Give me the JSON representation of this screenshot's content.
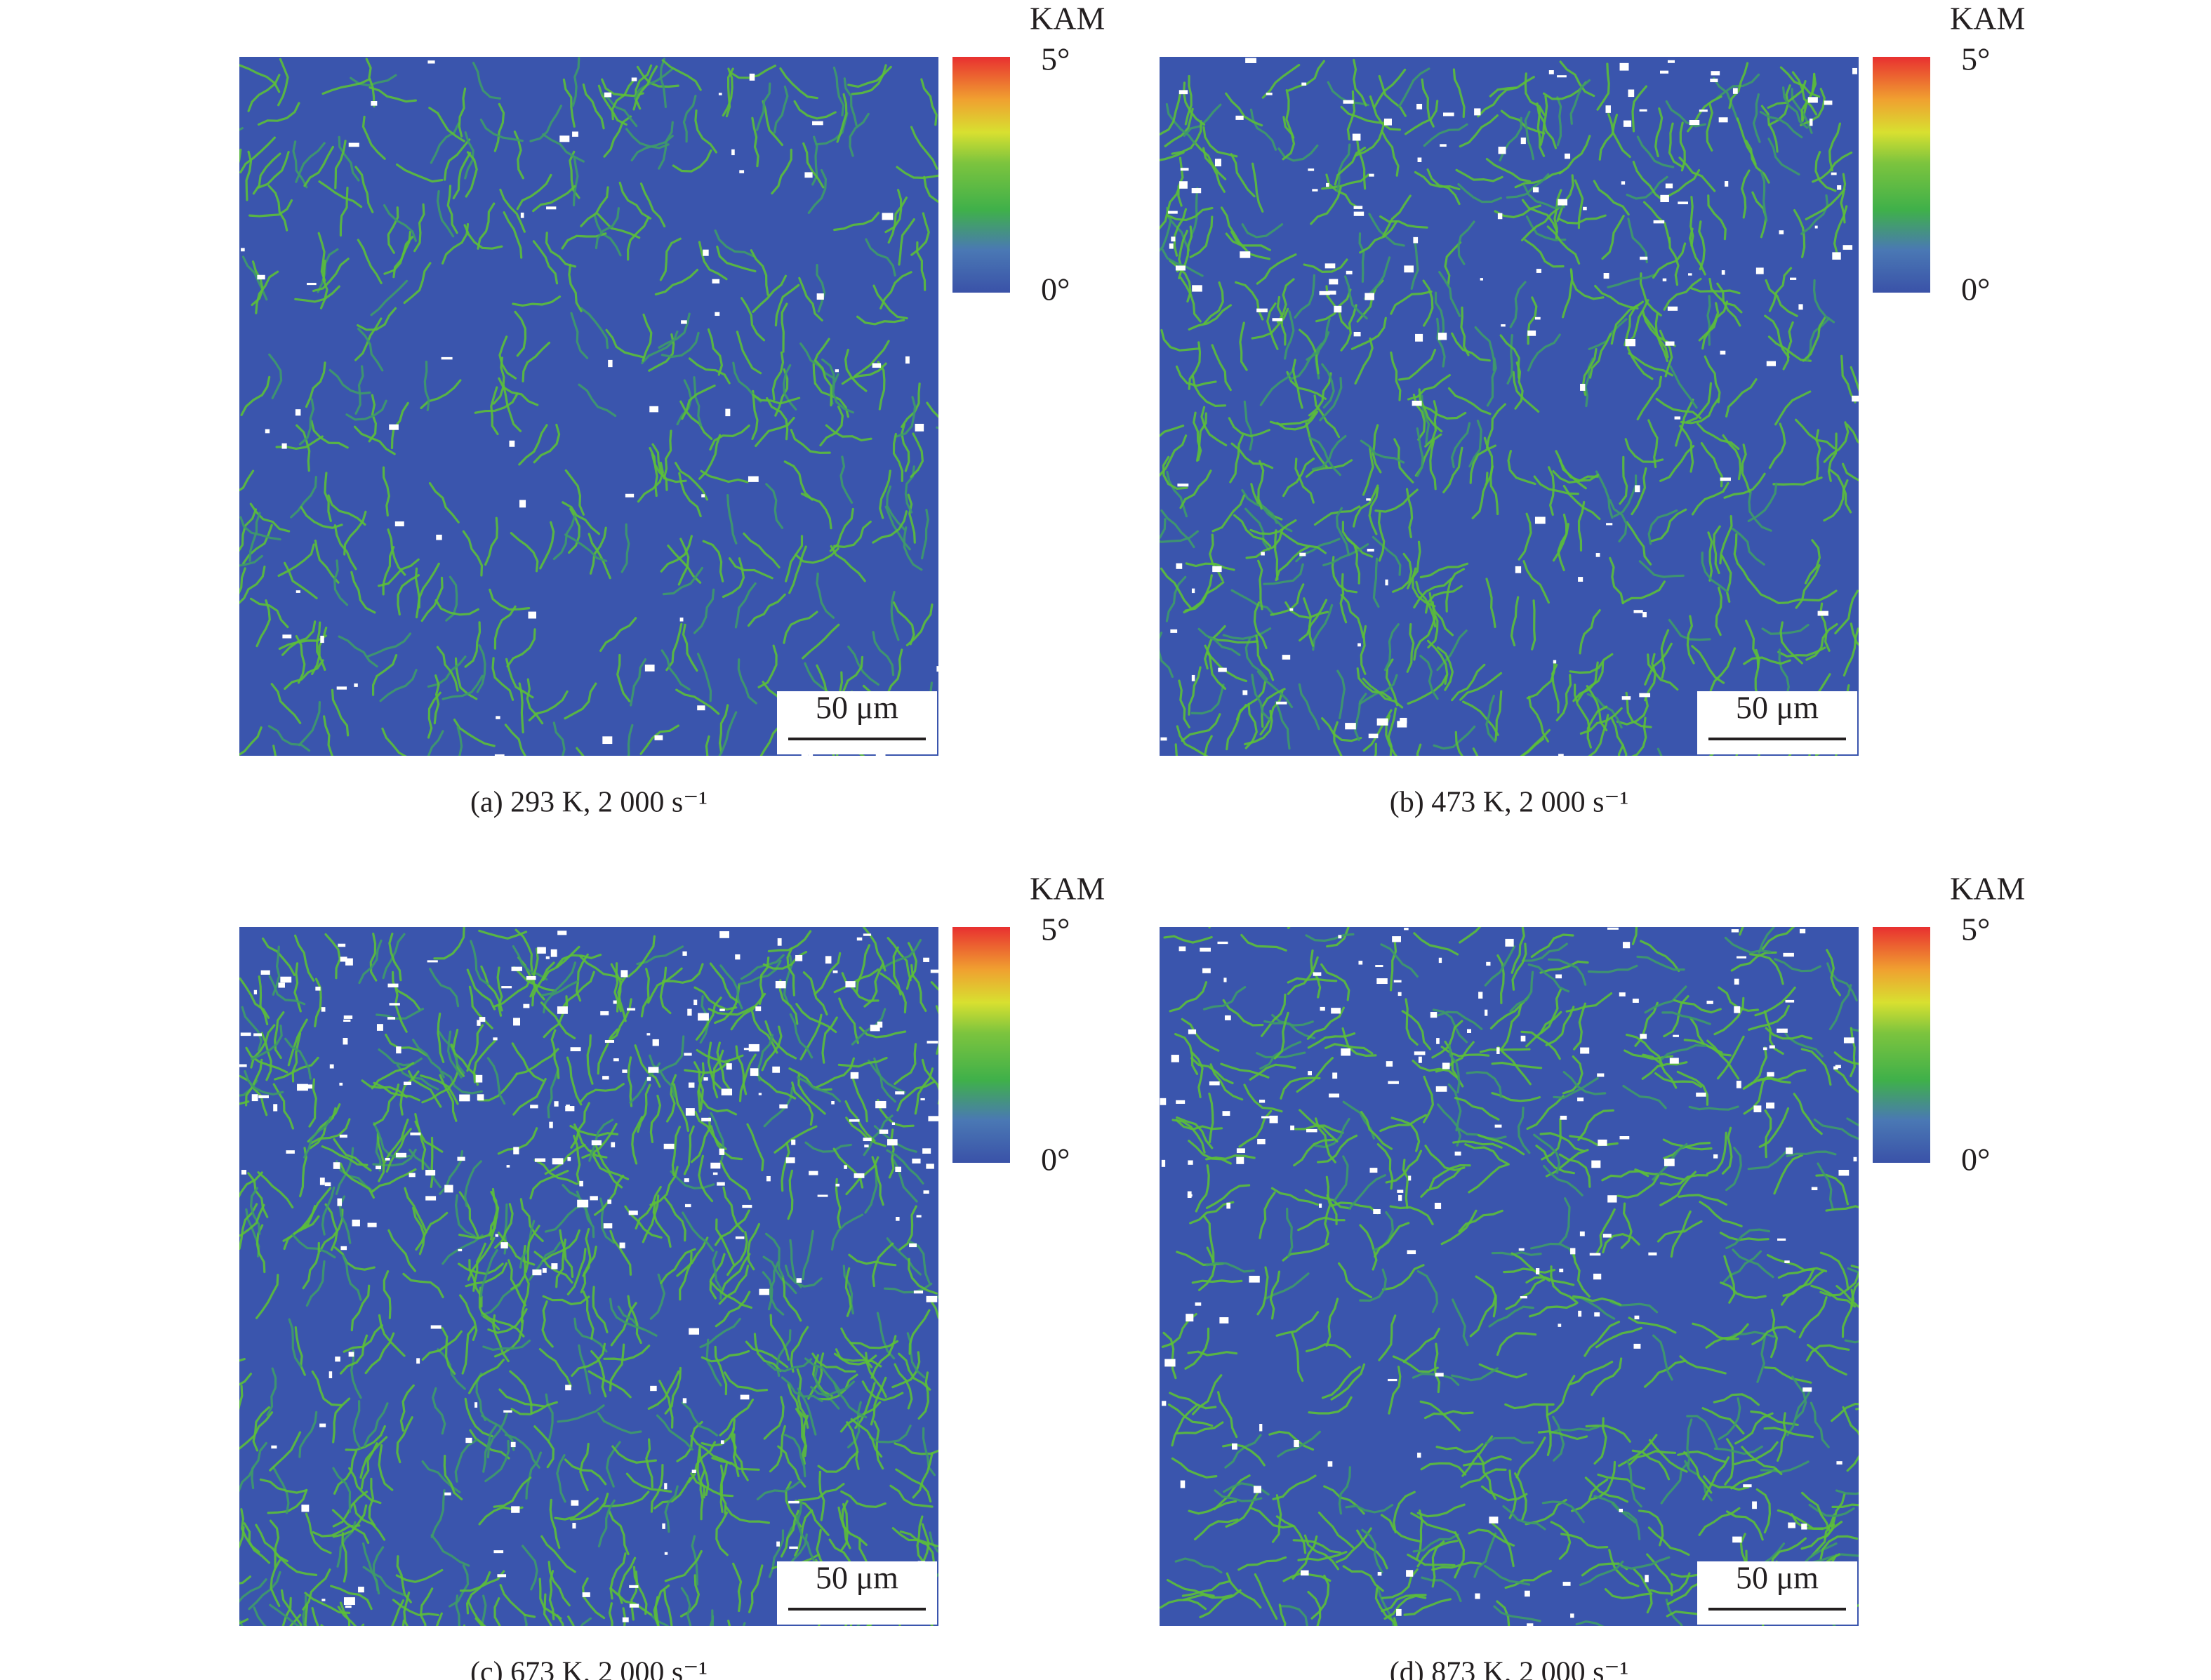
{
  "panels": [
    {
      "caption": "(a) 293 K, 2 000 s⁻¹",
      "colorbar_title": "KAM",
      "colorbar_max": "5°",
      "colorbar_min": "0°",
      "scale_bar": "50 μm"
    },
    {
      "caption": "(b) 473 K, 2 000 s⁻¹",
      "colorbar_title": "KAM",
      "colorbar_max": "5°",
      "colorbar_min": "0°",
      "scale_bar": "50 μm"
    },
    {
      "caption": "(c) 673 K, 2 000 s⁻¹",
      "colorbar_title": "KAM",
      "colorbar_max": "5°",
      "colorbar_min": "0°",
      "scale_bar": "50 μm"
    },
    {
      "caption": "(d) 873 K, 2 000 s⁻¹",
      "colorbar_title": "KAM",
      "colorbar_max": "5°",
      "colorbar_min": "0°",
      "scale_bar": "50 μm"
    }
  ]
}
